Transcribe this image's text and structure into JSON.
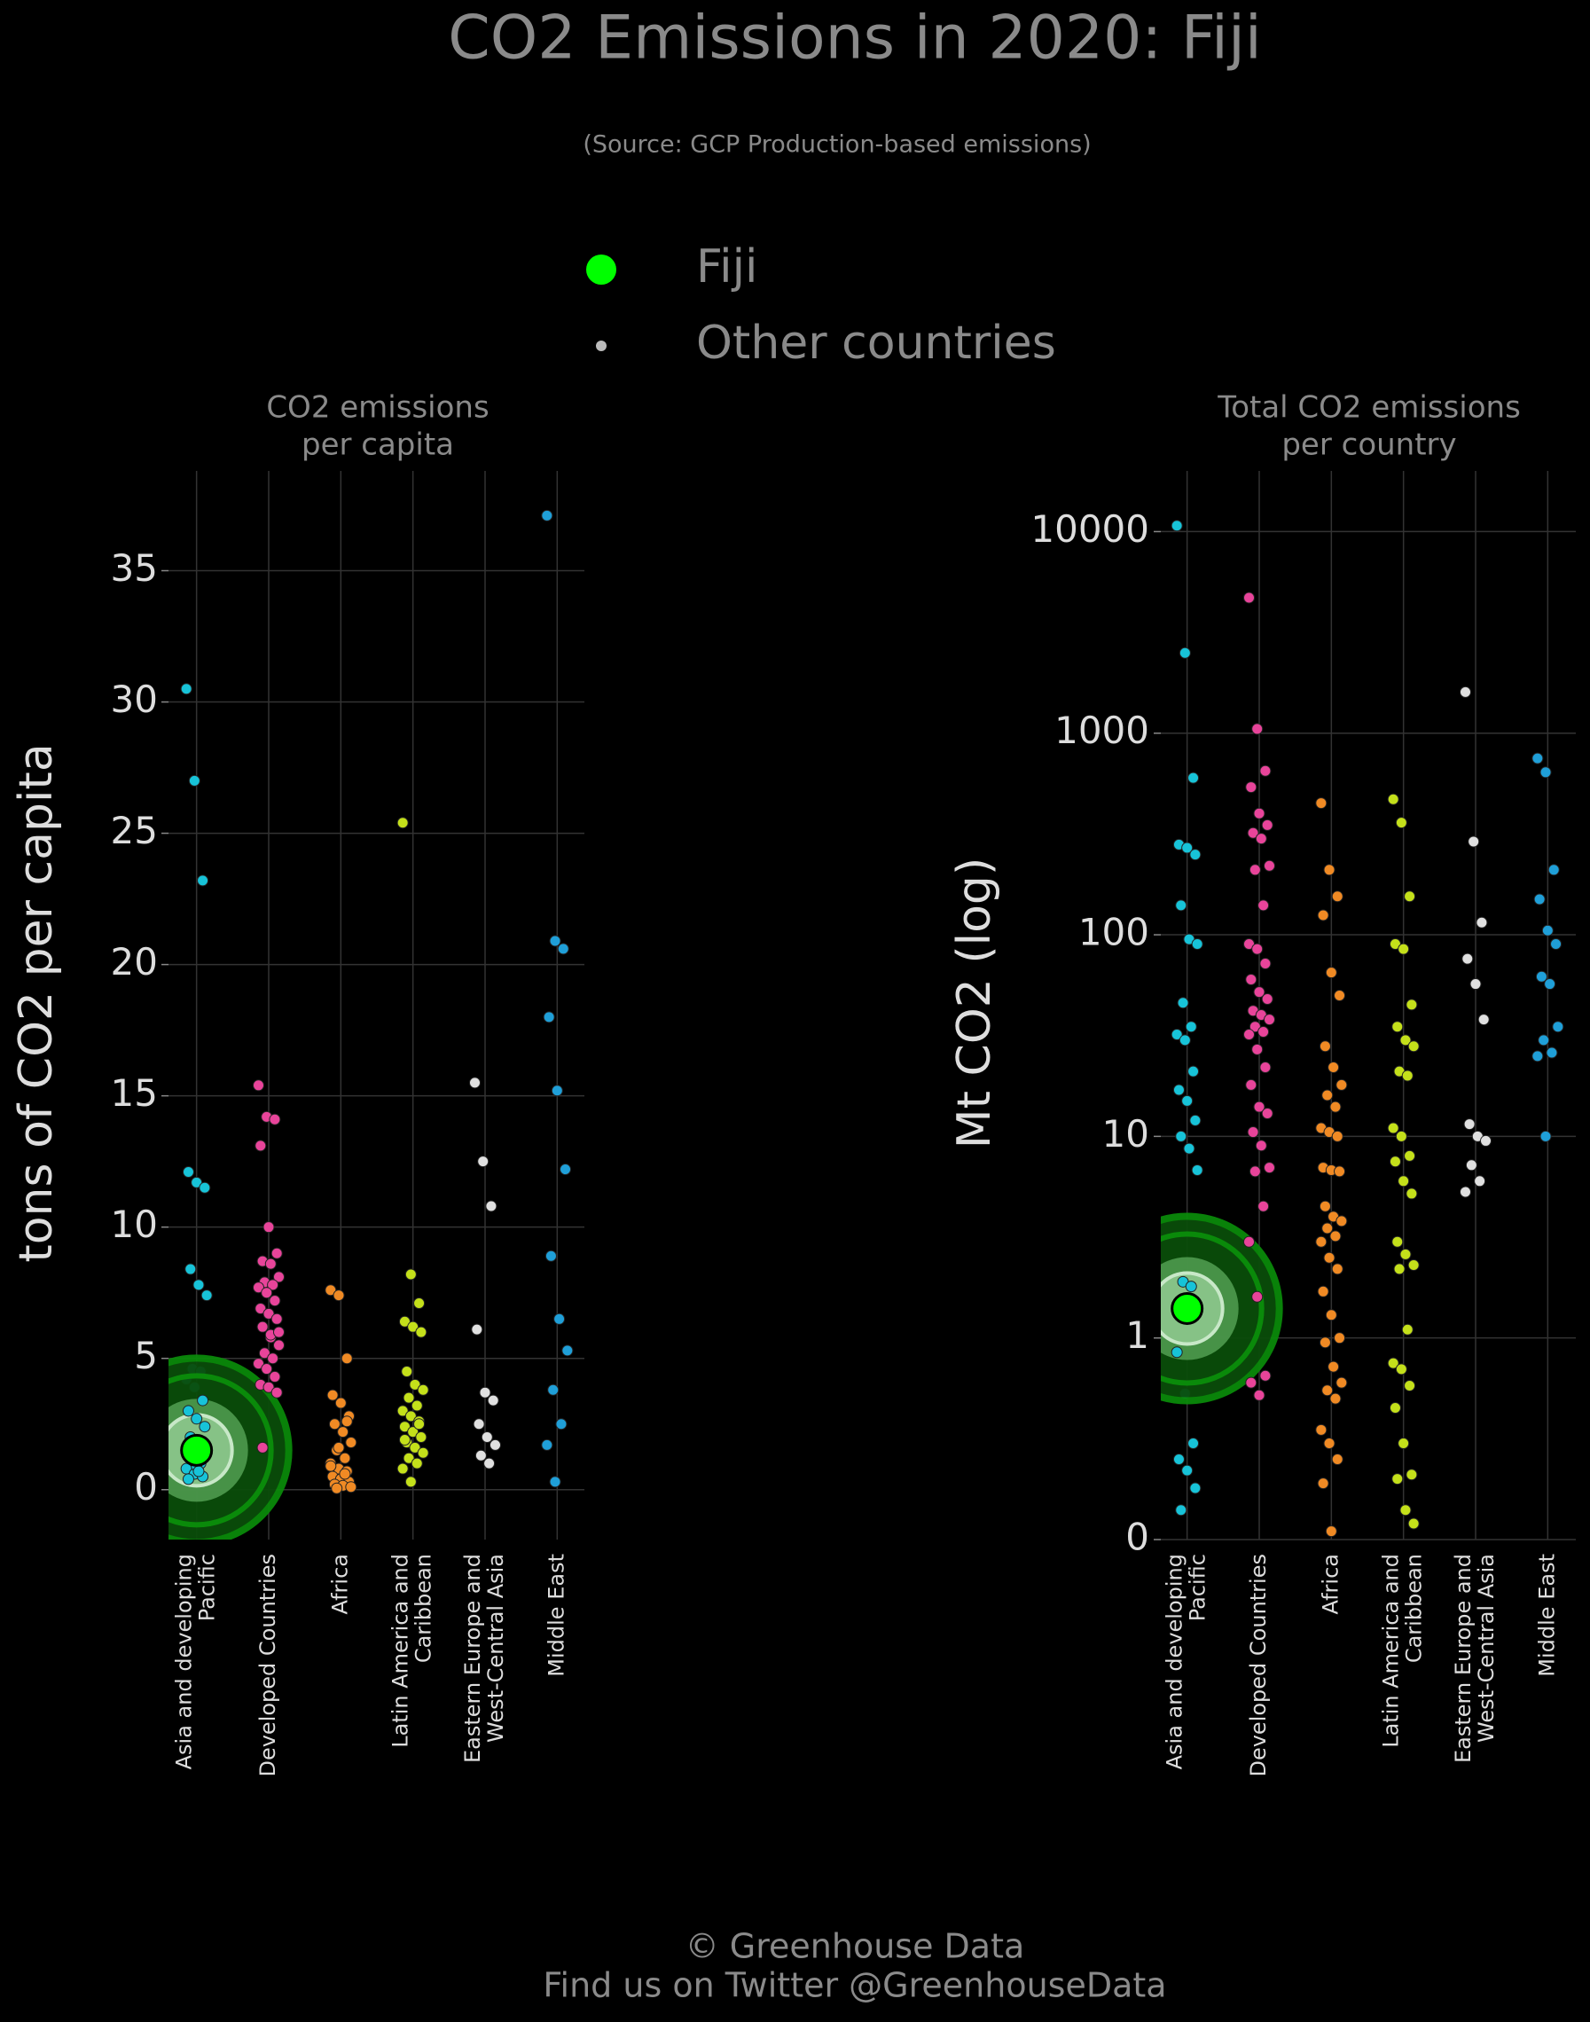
{
  "page": {
    "title": "CO2 Emissions in 2020: Fiji",
    "source": "(Source: GCP Production-based emissions)",
    "legend": [
      {
        "name": "Fiji",
        "color": "#00ff00"
      },
      {
        "name": "Other countries",
        "color": "#bbbbbb"
      }
    ],
    "footer": [
      "© Greenhouse Data",
      "Find us on Twitter @GreenhouseData"
    ]
  },
  "chart_data": [
    {
      "type": "strip",
      "subtitle": [
        "CO2 emissions",
        "per capita"
      ],
      "ylabel": "tons of CO2 per capita",
      "ylim": [
        -1.9,
        38.8
      ],
      "yticks": [
        0,
        5,
        10,
        15,
        20,
        25,
        30,
        35
      ],
      "log": false,
      "grid": true,
      "groups": [
        {
          "label": [
            "Asia and developing",
            "Pacific"
          ],
          "color": "#17c3d8",
          "highlight": 1.5,
          "values": [
            30.5,
            27,
            23.2,
            12.1,
            11.7,
            11.5,
            8.4,
            7.8,
            7.4,
            4.6,
            4.5,
            4.2,
            3.9,
            3.4,
            3.0,
            2.7,
            2.4,
            2.0,
            1.7,
            1.4,
            1.2,
            1.0,
            0.8,
            0.6,
            0.5,
            0.4,
            0.9,
            1.3,
            1.8,
            0.7
          ]
        },
        {
          "label": [
            "Developed Countries"
          ],
          "color": "#e8449a",
          "values": [
            15.4,
            14.2,
            14.1,
            13.1,
            10.0,
            9.0,
            8.7,
            8.6,
            8.1,
            7.9,
            7.8,
            7.7,
            7.5,
            7.2,
            6.9,
            6.7,
            6.5,
            6.2,
            5.8,
            5.5,
            5.2,
            5.0,
            4.8,
            4.6,
            4.3,
            4.0,
            3.9,
            3.7,
            1.6,
            5.9,
            6.0
          ]
        },
        {
          "label": [
            "Africa"
          ],
          "color": "#f08a24",
          "values": [
            7.6,
            7.4,
            5.0,
            3.6,
            3.3,
            2.8,
            2.5,
            2.2,
            1.8,
            1.5,
            1.2,
            1.0,
            0.8,
            0.7,
            0.5,
            0.4,
            0.3,
            0.2,
            0.15,
            0.1,
            0.05,
            0.6,
            0.9,
            1.6,
            2.6
          ]
        },
        {
          "label": [
            "Latin America and",
            "Caribbean"
          ],
          "color": "#c4e01a",
          "values": [
            25.4,
            8.2,
            7.1,
            6.4,
            6.2,
            6.0,
            4.5,
            4.0,
            3.8,
            3.5,
            3.2,
            3.0,
            2.8,
            2.6,
            2.4,
            2.2,
            2.0,
            1.8,
            1.6,
            1.4,
            1.2,
            1.0,
            0.8,
            0.3,
            2.5,
            1.9
          ]
        },
        {
          "label": [
            "Eastern Europe and",
            "West-Central Asia"
          ],
          "color": "#e0e0e0",
          "values": [
            15.5,
            12.5,
            10.8,
            6.1,
            3.7,
            3.4,
            2.5,
            2.0,
            1.7,
            1.3,
            1.0
          ]
        },
        {
          "label": [
            "Middle East"
          ],
          "color": "#1f9fd8",
          "values": [
            37.1,
            20.9,
            20.6,
            18.0,
            15.2,
            12.2,
            8.9,
            6.5,
            5.3,
            3.8,
            2.5,
            1.7,
            0.3
          ]
        }
      ]
    },
    {
      "type": "strip",
      "subtitle": [
        "Total CO2 emissions",
        "per country"
      ],
      "ylabel": "Mt CO2 (log)",
      "ylim": [
        0.1,
        20000
      ],
      "yticks": [
        {
          "value": 0.1,
          "label": "0"
        },
        1,
        10,
        100,
        1000,
        10000
      ],
      "log": true,
      "grid": true,
      "groups": [
        {
          "label": [
            "Asia and developing",
            "Pacific"
          ],
          "color": "#17c3d8",
          "highlight": 1.4,
          "values": [
            10700,
            2500,
            600,
            280,
            270,
            250,
            140,
            95,
            90,
            46,
            35,
            32,
            30,
            21,
            17,
            15,
            12,
            10,
            8.7,
            6.8,
            1.9,
            1.8,
            0.85,
            0.53,
            0.3,
            0.25,
            0.22,
            0.18,
            0.14
          ]
        },
        {
          "label": [
            "Developed Countries"
          ],
          "color": "#e8449a",
          "values": [
            4700,
            1050,
            650,
            540,
            400,
            350,
            320,
            300,
            220,
            210,
            140,
            90,
            85,
            72,
            60,
            52,
            48,
            42,
            40,
            38,
            35,
            33,
            32,
            27,
            22,
            18,
            14,
            13,
            10.5,
            9,
            7,
            6.7,
            4.5,
            3,
            1.6,
            0.65,
            0.6,
            0.52
          ]
        },
        {
          "label": [
            "Africa"
          ],
          "color": "#f08a24",
          "values": [
            450,
            210,
            155,
            125,
            65,
            50,
            28,
            22,
            18,
            16,
            14,
            11,
            10.5,
            10,
            7,
            6.8,
            6.7,
            4.5,
            4,
            3.8,
            3.5,
            3.2,
            3,
            2.5,
            2.2,
            1.7,
            1.3,
            1.0,
            0.95,
            0.72,
            0.6,
            0.55,
            0.5,
            0.35,
            0.3,
            0.25,
            0.19,
            0.11
          ]
        },
        {
          "label": [
            "Latin America and",
            "Caribbean"
          ],
          "color": "#c4e01a",
          "values": [
            470,
            360,
            155,
            90,
            85,
            45,
            35,
            30,
            28,
            21,
            20,
            11,
            10,
            8,
            7.5,
            6,
            5.2,
            3,
            2.6,
            2.3,
            2.2,
            1.1,
            0.75,
            0.7,
            0.58,
            0.45,
            0.3,
            0.21,
            0.2,
            0.14,
            0.12
          ]
        },
        {
          "label": [
            "Eastern Europe and",
            "West-Central Asia"
          ],
          "color": "#e0e0e0",
          "values": [
            1600,
            290,
            115,
            76,
            57,
            38,
            11.5,
            10,
            9.5,
            7.2,
            6,
            5.3
          ]
        },
        {
          "label": [
            "Middle East"
          ],
          "color": "#1f9fd8",
          "values": [
            750,
            640,
            210,
            150,
            105,
            90,
            62,
            57,
            35,
            30,
            26,
            25,
            10
          ]
        }
      ]
    }
  ]
}
